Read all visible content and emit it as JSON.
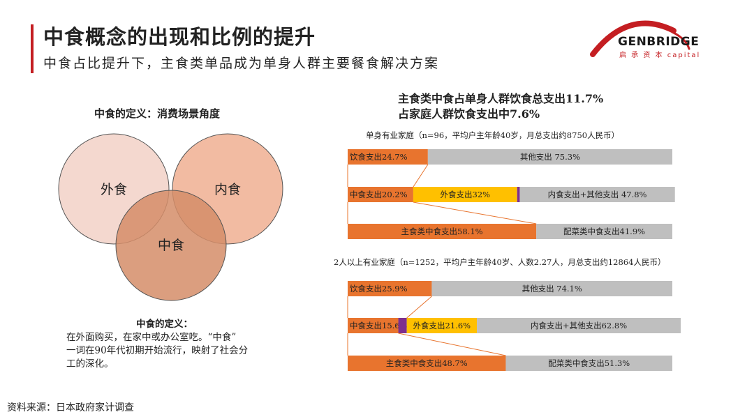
{
  "header": {
    "title": "中食概念的出现和比例的提升",
    "subtitle": "中食占比提升下，主食类单品成为单身人群主要餐食解决方案"
  },
  "logo": {
    "name": "GENBRIDGE",
    "sub": "启 承 资 本 capital"
  },
  "left": {
    "heading": "中食的定义：消费场景角度",
    "venn": {
      "outer": "外食",
      "inner": "内食",
      "middle": "中食"
    },
    "definition_title": "中食的定义：",
    "definition_lines": [
      "在外面购买，在家中或办公室吃。“中食”",
      "一词在90年代初期开始流行，映射了社会分",
      "工的深化。"
    ]
  },
  "right": {
    "heading_lines": [
      "主食类中食占单身人群饮食总支出11.7%",
      "占家庭人群饮食支出中7.6%"
    ]
  },
  "footer": {
    "source": "资料来源：日本政府家计调查"
  },
  "colors": {
    "orange": "#e8742e",
    "yellow": "#ffc000",
    "purple": "#7e2f8e",
    "gray": "#bfbfbf",
    "red": "#c41e22",
    "venn_outer": "#f4d8cf",
    "venn_inner": "#f2bba2",
    "venn_middle": "#d58d68"
  },
  "chart_data": [
    {
      "type": "bar",
      "orientation": "horizontal-stacked",
      "title": "单身有业家庭（n=96，平均户主年龄40岁，月总支出约8750人民币）",
      "unit": "%",
      "rows": [
        {
          "segments": [
            {
              "label": "饮食支出24.7%",
              "value": 24.7,
              "color": "orange"
            },
            {
              "label": "其他支出 75.3%",
              "value": 75.3,
              "color": "gray"
            }
          ]
        },
        {
          "segments": [
            {
              "label": "中食支出20.2%",
              "value": 20.2,
              "color": "orange"
            },
            {
              "label": "外食支出32%",
              "value": 32,
              "color": "yellow"
            },
            {
              "label": "",
              "value": 0.8,
              "color": "purple"
            },
            {
              "label": "内食支出+其他支出 47.8%",
              "value": 47.8,
              "color": "gray"
            }
          ]
        },
        {
          "segments": [
            {
              "label": "主食类中食支出58.1%",
              "value": 58.1,
              "color": "orange"
            },
            {
              "label": "配菜类中食支出41.9%",
              "value": 41.9,
              "color": "gray"
            }
          ]
        }
      ]
    },
    {
      "type": "bar",
      "orientation": "horizontal-stacked",
      "title": "2人以上有业家庭（n=1252，平均户主年龄40岁、人数2.27人，月总支出约12864人民币）",
      "unit": "%",
      "rows": [
        {
          "segments": [
            {
              "label": "饮食支出25.9%",
              "value": 25.9,
              "color": "orange"
            },
            {
              "label": "其他支出  74.1%",
              "value": 74.1,
              "color": "gray"
            }
          ]
        },
        {
          "segments": [
            {
              "label": "中食支出15.6%",
              "value": 15.6,
              "color": "orange"
            },
            {
              "label": "",
              "value": 2.6,
              "color": "purple"
            },
            {
              "label": "外食支出21.6%",
              "value": 21.6,
              "color": "yellow"
            },
            {
              "label": "内食支出+其他支出62.8%",
              "value": 62.8,
              "color": "gray"
            }
          ]
        },
        {
          "segments": [
            {
              "label": "主食类中食支出48.7%",
              "value": 48.7,
              "color": "orange"
            },
            {
              "label": "配菜类中食支出51.3%",
              "value": 51.3,
              "color": "gray"
            }
          ]
        }
      ]
    }
  ]
}
